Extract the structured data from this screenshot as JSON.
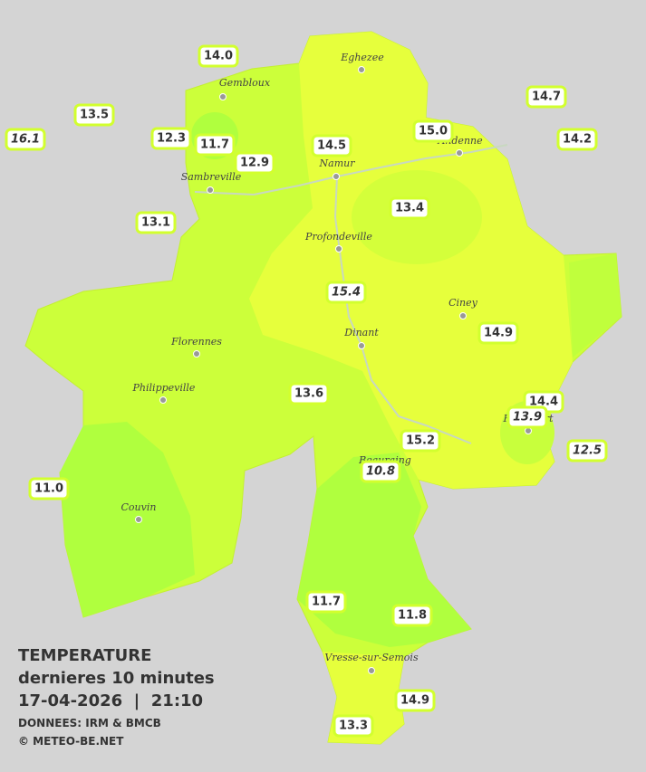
{
  "title": "TEMPERATURE",
  "subtitle": "dernieres 10 minutes",
  "datetime": "17-04-2026  |  21:10",
  "source": "DONNEES: IRM & BMCB",
  "credit": "© METEO-BE.NET",
  "cities": [
    "Eghezee",
    "Gembloux",
    "Andenne",
    "Namur",
    "Sambreville",
    "Profondeville",
    "Ciney",
    "Dinant",
    "Florennes",
    "Philippeville",
    "Rochefort",
    "Beauraing",
    "Couvin",
    "Vresse-sur-Semois"
  ],
  "temperatures": [
    "14.0",
    "13.5",
    "16.1",
    "12.3",
    "11.7",
    "12.9",
    "14.5",
    "15.0",
    "14.7",
    "14.2",
    "13.1",
    "13.4",
    "15.4",
    "14.9",
    "13.6",
    "14.4",
    "13.9",
    "15.2",
    "12.5",
    "10.8",
    "11.0",
    "11.7",
    "11.8",
    "14.9",
    "13.3"
  ]
}
